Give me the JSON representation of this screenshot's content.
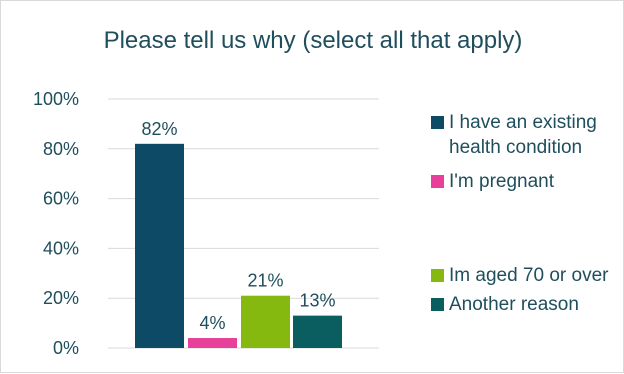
{
  "chart_data": {
    "type": "bar",
    "title": "Please tell us why (select all that apply)",
    "categories": [
      "I have an existing health condition",
      "I'm pregnant",
      "Im aged 70 or over",
      "Another reason"
    ],
    "values": [
      82,
      4,
      21,
      13
    ],
    "value_labels": [
      "82%",
      "4%",
      "21%",
      "13%"
    ],
    "colors": [
      "#0d4a66",
      "#e8409a",
      "#86b910",
      "#0a5e60"
    ],
    "ylim": [
      0,
      100
    ],
    "yticks": [
      0,
      20,
      40,
      60,
      80,
      100
    ],
    "ytick_labels": [
      "0%",
      "20%",
      "40%",
      "60%",
      "80%",
      "100%"
    ],
    "grid": true,
    "legend_position": "right",
    "xlabel": "",
    "ylabel": ""
  }
}
